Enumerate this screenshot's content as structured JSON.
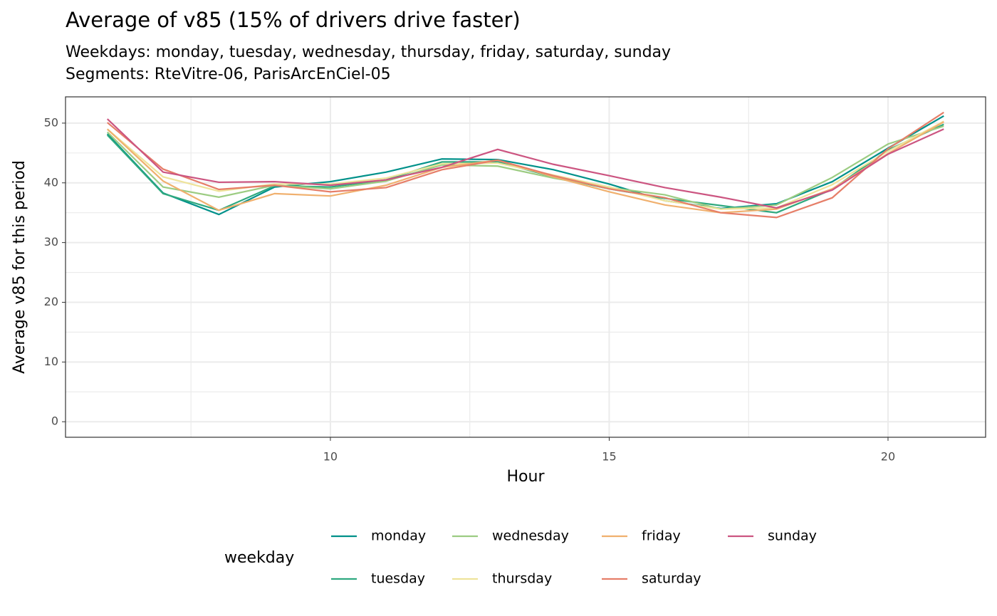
{
  "chart_data": {
    "type": "line",
    "title": "Average of v85 (15% of drivers drive faster)",
    "subtitle": [
      "Weekdays: monday, tuesday, wednesday, thursday, friday, saturday, sunday",
      "Segments: RteVitre-06, ParisArcEnCiel-05"
    ],
    "x_label": "Hour",
    "y_label": "Average v85 for this period",
    "legend_title": "weekday",
    "legend_position": "bottom",
    "grid": true,
    "x": [
      6,
      7,
      8,
      9,
      10,
      11,
      12,
      13,
      14,
      15,
      16,
      17,
      18,
      19,
      20,
      21
    ],
    "xlim": [
      5.25,
      21.75
    ],
    "xticks": [
      10,
      15,
      20
    ],
    "ylim": [
      -2.6,
      54.4
    ],
    "yticks": [
      0,
      10,
      20,
      30,
      40,
      50
    ],
    "series": [
      {
        "name": "monday",
        "color": "#00918a",
        "values": [
          48.2,
          38.3,
          34.7,
          39.3,
          40.2,
          41.8,
          44.0,
          43.9,
          42.2,
          39.8,
          37.0,
          35.7,
          36.5,
          40.2,
          45.8,
          51.2
        ]
      },
      {
        "name": "tuesday",
        "color": "#2fa97f",
        "values": [
          48.0,
          38.2,
          35.4,
          39.5,
          39.3,
          40.5,
          43.5,
          43.5,
          41.0,
          39.0,
          37.4,
          36.2,
          35.0,
          38.9,
          45.5,
          49.8
        ]
      },
      {
        "name": "wednesday",
        "color": "#9ccc82",
        "values": [
          48.5,
          39.3,
          37.6,
          39.6,
          39.0,
          40.3,
          43.0,
          42.8,
          40.8,
          39.2,
          38.0,
          35.6,
          36.3,
          40.9,
          46.5,
          49.5
        ]
      },
      {
        "name": "thursday",
        "color": "#eee39a",
        "values": [
          49.0,
          41.0,
          38.6,
          39.8,
          39.8,
          40.8,
          43.2,
          43.3,
          41.3,
          39.3,
          37.0,
          35.6,
          35.8,
          39.7,
          45.3,
          50.3
        ]
      },
      {
        "name": "friday",
        "color": "#f0b06e",
        "values": [
          49.0,
          40.3,
          35.4,
          38.2,
          37.8,
          39.6,
          42.6,
          43.8,
          41.0,
          38.5,
          36.3,
          35.0,
          35.6,
          39.0,
          44.9,
          50.2
        ]
      },
      {
        "name": "saturday",
        "color": "#e67e68",
        "values": [
          50.1,
          42.3,
          38.9,
          39.6,
          38.5,
          39.2,
          42.2,
          43.8,
          41.2,
          39.0,
          37.5,
          35.0,
          34.2,
          37.5,
          45.7,
          51.8
        ]
      },
      {
        "name": "sunday",
        "color": "#cc5581",
        "values": [
          50.7,
          41.8,
          40.1,
          40.2,
          39.6,
          40.5,
          42.6,
          45.6,
          43.1,
          41.2,
          39.2,
          37.6,
          35.8,
          38.8,
          44.8,
          49.0
        ]
      }
    ]
  }
}
